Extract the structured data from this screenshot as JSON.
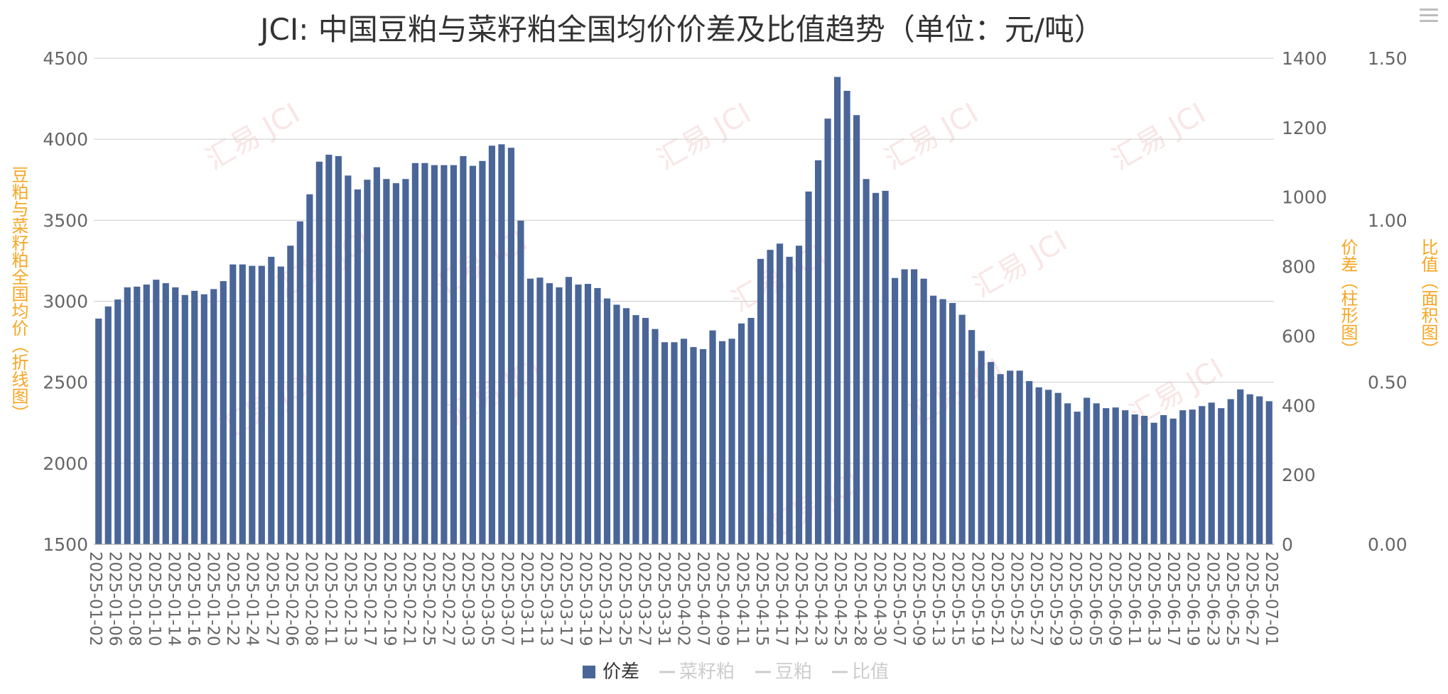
{
  "chart_data": {
    "type": "bar",
    "title": "JCI: 中国豆粕与菜籽粕全国均价价差及比值趋势（单位：元/吨）",
    "y_left_label": "豆粕与菜籽粕全国均价（折线图）",
    "y_right1_label": "价差（柱形图）",
    "y_right2_label": "比值（面积图）",
    "y_left_ticks": [
      "4500",
      "4000",
      "3500",
      "3000",
      "2500",
      "2000",
      "1500"
    ],
    "y_right1_ticks": [
      "1400",
      "1200",
      "1000",
      "800",
      "600",
      "400",
      "200",
      "0"
    ],
    "y_right2_ticks": [
      "1.50",
      "1.00",
      "0.50",
      "0.00"
    ],
    "y_left_range": [
      1500,
      4500
    ],
    "y_right1_range": [
      0,
      1400
    ],
    "y_right2_range": [
      0,
      1.5
    ],
    "x_labels": [
      "2025-01-02",
      "2025-01-06",
      "2025-01-08",
      "2025-01-10",
      "2025-01-14",
      "2025-01-16",
      "2025-01-20",
      "2025-01-22",
      "2025-01-24",
      "2025-01-27",
      "2025-02-06",
      "2025-02-08",
      "2025-02-11",
      "2025-02-13",
      "2025-02-17",
      "2025-02-19",
      "2025-02-21",
      "2025-02-25",
      "2025-02-27",
      "2025-03-03",
      "2025-03-05",
      "2025-03-07",
      "2025-03-11",
      "2025-03-13",
      "2025-03-17",
      "2025-03-19",
      "2025-03-21",
      "2025-03-25",
      "2025-03-27",
      "2025-03-31",
      "2025-04-02",
      "2025-04-07",
      "2025-04-09",
      "2025-04-11",
      "2025-04-15",
      "2025-04-17",
      "2025-04-21",
      "2025-04-23",
      "2025-04-25",
      "2025-04-28",
      "2025-04-30",
      "2025-05-07",
      "2025-05-09",
      "2025-05-13",
      "2025-05-15",
      "2025-05-19",
      "2025-05-21",
      "2025-05-23",
      "2025-05-27",
      "2025-05-29",
      "2025-06-03",
      "2025-06-05",
      "2025-06-09",
      "2025-06-11",
      "2025-06-13",
      "2025-06-17",
      "2025-06-19",
      "2025-06-23",
      "2025-06-25",
      "2025-06-27",
      "2025-07-01"
    ],
    "series": [
      {
        "name": "价差",
        "color": "#4a6699",
        "values": [
          650,
          685,
          705,
          740,
          742,
          748,
          762,
          752,
          740,
          718,
          730,
          720,
          735,
          758,
          806,
          806,
          802,
          802,
          828,
          800,
          860,
          930,
          1008,
          1102,
          1122,
          1118,
          1062,
          1022,
          1050,
          1086,
          1052,
          1040,
          1052,
          1098,
          1098,
          1092,
          1092,
          1092,
          1118,
          1090,
          1104,
          1148,
          1152,
          1142,
          932,
          765,
          768,
          752,
          740,
          770,
          748,
          750,
          738,
          708,
          690,
          680,
          660,
          652,
          620,
          582,
          582,
          592,
          568,
          562,
          616,
          585,
          592,
          636,
          652,
          822,
          848,
          866,
          828,
          860,
          1016,
          1106,
          1226,
          1346,
          1306,
          1236,
          1052,
          1012,
          1018,
          767,
          792,
          792,
          765,
          716,
          706,
          695,
          661,
          617,
          557,
          525,
          490,
          500,
          500,
          470,
          452,
          445,
          436,
          406,
          382,
          422,
          406,
          392,
          394,
          386,
          374,
          370,
          350,
          372,
          362,
          386,
          388,
          398,
          408,
          392,
          418,
          446,
          432,
          426,
          412
        ]
      },
      {
        "name": "菜籽粕",
        "color": "#cccccc",
        "values": []
      },
      {
        "name": "豆粕",
        "color": "#cccccc",
        "values": []
      },
      {
        "name": "比值",
        "color": "#cccccc",
        "values": []
      }
    ],
    "grid": true,
    "legend_position": "bottom-center",
    "title_color": "#333333",
    "axis_title_color": "#f5a623",
    "tick_color": "#666666",
    "grid_color": "#cccccc",
    "watermark_text": "汇易 JCI"
  }
}
